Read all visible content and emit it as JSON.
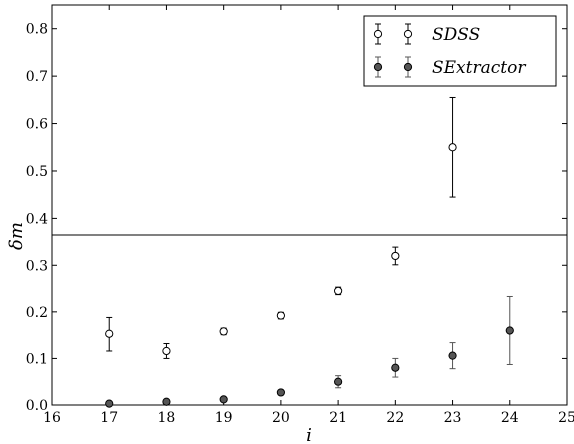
{
  "chart_data": {
    "type": "scatter",
    "title": "",
    "xlabel": "i",
    "ylabel": "δm",
    "xlim": [
      16,
      25
    ],
    "x_ticks": [
      "16",
      "17",
      "18",
      "19",
      "20",
      "21",
      "22",
      "23",
      "24",
      "25"
    ],
    "y_ticks_lower": [
      "0.0",
      "0.1",
      "0.2",
      "0.3"
    ],
    "y_ticks_upper": [
      "0.4",
      "0.5",
      "0.6",
      "0.7",
      "0.8"
    ],
    "ylim_lower": [
      0.0,
      0.365
    ],
    "ylim_upper": [
      0.365,
      0.85
    ],
    "grid": false,
    "legend_position": "top-right",
    "series": [
      {
        "name": "SDSS",
        "marker": "open-circle",
        "color": "#000000",
        "points": [
          {
            "x": 17,
            "y": 0.153,
            "err_low": 0.037,
            "err_high": 0.035
          },
          {
            "x": 18,
            "y": 0.116,
            "err_low": 0.016,
            "err_high": 0.016
          },
          {
            "x": 19,
            "y": 0.158,
            "err_low": 0.007,
            "err_high": 0.007
          },
          {
            "x": 20,
            "y": 0.192,
            "err_low": 0.007,
            "err_high": 0.007
          },
          {
            "x": 21,
            "y": 0.245,
            "err_low": 0.008,
            "err_high": 0.008
          },
          {
            "x": 22,
            "y": 0.32,
            "err_low": 0.019,
            "err_high": 0.019
          },
          {
            "x": 23,
            "y": 0.55,
            "err_low": 0.105,
            "err_high": 0.105
          }
        ]
      },
      {
        "name": "SExtractor",
        "marker": "filled-circle",
        "color": "#555555",
        "points": [
          {
            "x": 17,
            "y": 0.003,
            "err_low": 0.002,
            "err_high": 0.002
          },
          {
            "x": 18,
            "y": 0.007,
            "err_low": 0.002,
            "err_high": 0.002
          },
          {
            "x": 19,
            "y": 0.012,
            "err_low": 0.003,
            "err_high": 0.003
          },
          {
            "x": 20,
            "y": 0.027,
            "err_low": 0.005,
            "err_high": 0.005
          },
          {
            "x": 21,
            "y": 0.05,
            "err_low": 0.013,
            "err_high": 0.013
          },
          {
            "x": 22,
            "y": 0.08,
            "err_low": 0.02,
            "err_high": 0.02
          },
          {
            "x": 23,
            "y": 0.106,
            "err_low": 0.028,
            "err_high": 0.028
          },
          {
            "x": 24,
            "y": 0.16,
            "err_low": 0.073,
            "err_high": 0.073
          }
        ]
      }
    ]
  }
}
